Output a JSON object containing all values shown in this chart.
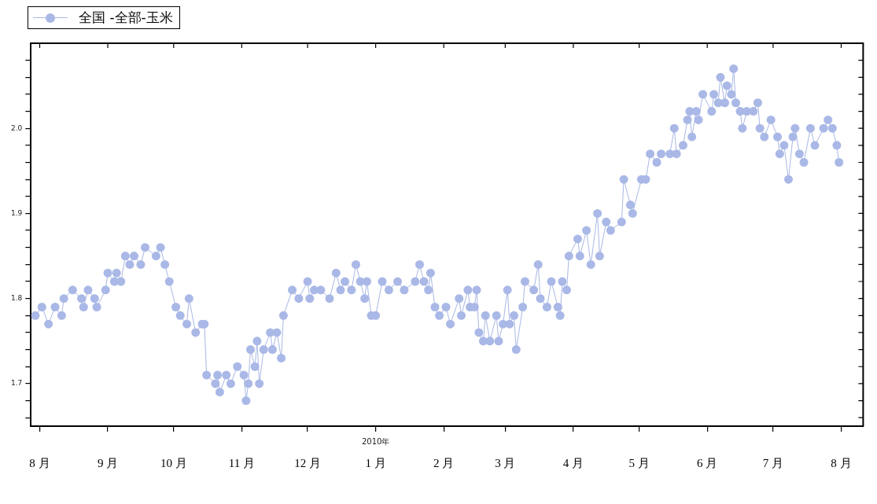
{
  "chart_data": {
    "type": "line",
    "legend": "top left",
    "marker": "circle",
    "xlim": [
      "2009-07-28",
      "2010-08-11"
    ],
    "xticks": [
      {
        "value": "2009-08-01",
        "label": "8 月"
      },
      {
        "value": "2009-09-01",
        "label": "9 月"
      },
      {
        "value": "2009-10-01",
        "label": "10 月"
      },
      {
        "value": "2009-11-01",
        "label": "11 月"
      },
      {
        "value": "2009-12-01",
        "label": "12 月"
      },
      {
        "value": "2010-01-01",
        "label": "1 月"
      },
      {
        "value": "2010-02-01",
        "label": "2 月"
      },
      {
        "value": "2010-03-01",
        "label": "3 月"
      },
      {
        "value": "2010-04-01",
        "label": "4 月"
      },
      {
        "value": "2010-05-01",
        "label": "5 月"
      },
      {
        "value": "2010-06-01",
        "label": "6 月"
      },
      {
        "value": "2010-07-01",
        "label": "7 月"
      },
      {
        "value": "2010-08-01",
        "label": "8 月"
      }
    ],
    "ylim": [
      1.65,
      2.1
    ],
    "yticks": [
      {
        "value": 1.66,
        "label": null
      },
      {
        "value": 1.68,
        "label": null
      },
      {
        "value": 1.7,
        "label": "1.7"
      },
      {
        "value": 1.72,
        "label": null
      },
      {
        "value": 1.74,
        "label": null
      },
      {
        "value": 1.76,
        "label": null
      },
      {
        "value": 1.78,
        "label": null
      },
      {
        "value": 1.8,
        "label": "1.8"
      },
      {
        "value": 1.82,
        "label": null
      },
      {
        "value": 1.84,
        "label": null
      },
      {
        "value": 1.86,
        "label": null
      },
      {
        "value": 1.88,
        "label": null
      },
      {
        "value": 1.9,
        "label": "1.9"
      },
      {
        "value": 1.92,
        "label": null
      },
      {
        "value": 1.94,
        "label": null
      },
      {
        "value": 1.96,
        "label": null
      },
      {
        "value": 1.98,
        "label": null
      },
      {
        "value": 2.0,
        "label": "2.0"
      },
      {
        "value": 2.02,
        "label": null
      },
      {
        "value": 2.04,
        "label": null
      },
      {
        "value": 2.06,
        "label": null
      },
      {
        "value": 2.08,
        "label": null
      }
    ],
    "annotations": [
      "2010年"
    ],
    "series": [
      {
        "name": "全国 -全部-玉米",
        "color": "#a9b8e6",
        "x": [
          "2009-07-30",
          "2009-08-02",
          "2009-08-05",
          "2009-08-08",
          "2009-08-11",
          "2009-08-12",
          "2009-08-16",
          "2009-08-20",
          "2009-08-21",
          "2009-08-23",
          "2009-08-26",
          "2009-08-27",
          "2009-08-31",
          "2009-09-01",
          "2009-09-04",
          "2009-09-05",
          "2009-09-07",
          "2009-09-09",
          "2009-09-11",
          "2009-09-13",
          "2009-09-16",
          "2009-09-18",
          "2009-09-23",
          "2009-09-25",
          "2009-09-27",
          "2009-09-29",
          "2009-10-02",
          "2009-10-04",
          "2009-10-07",
          "2009-10-08",
          "2009-10-11",
          "2009-10-14",
          "2009-10-15",
          "2009-10-16",
          "2009-10-20",
          "2009-10-21",
          "2009-10-22",
          "2009-10-25",
          "2009-10-27",
          "2009-10-30",
          "2009-11-02",
          "2009-11-03",
          "2009-11-04",
          "2009-11-05",
          "2009-11-07",
          "2009-11-08",
          "2009-11-09",
          "2009-11-11",
          "2009-11-14",
          "2009-11-15",
          "2009-11-17",
          "2009-11-19",
          "2009-11-20",
          "2009-11-24",
          "2009-11-27",
          "2009-12-01",
          "2009-12-02",
          "2009-12-04",
          "2009-12-07",
          "2009-12-11",
          "2009-12-14",
          "2009-12-16",
          "2009-12-18",
          "2009-12-21",
          "2009-12-23",
          "2009-12-25",
          "2009-12-27",
          "2009-12-28",
          "2009-12-30",
          "2010-01-01",
          "2010-01-04",
          "2010-01-07",
          "2010-01-11",
          "2010-01-14",
          "2010-01-19",
          "2010-01-21",
          "2010-01-23",
          "2010-01-25",
          "2010-01-26",
          "2010-01-28",
          "2010-01-30",
          "2010-02-02",
          "2010-02-04",
          "2010-02-08",
          "2010-02-09",
          "2010-02-12",
          "2010-02-13",
          "2010-02-15",
          "2010-02-16",
          "2010-02-17",
          "2010-02-19",
          "2010-02-20",
          "2010-02-22",
          "2010-02-25",
          "2010-02-26",
          "2010-02-28",
          "2010-03-02",
          "2010-03-03",
          "2010-03-05",
          "2010-03-06",
          "2010-03-09",
          "2010-03-10",
          "2010-03-14",
          "2010-03-16",
          "2010-03-17",
          "2010-03-20",
          "2010-03-22",
          "2010-03-25",
          "2010-03-26",
          "2010-03-27",
          "2010-03-29",
          "2010-03-30",
          "2010-04-03",
          "2010-04-04",
          "2010-04-07",
          "2010-04-09",
          "2010-04-12",
          "2010-04-13",
          "2010-04-16",
          "2010-04-18",
          "2010-04-23",
          "2010-04-24",
          "2010-04-27",
          "2010-04-28",
          "2010-05-02",
          "2010-05-04",
          "2010-05-06",
          "2010-05-09",
          "2010-05-11",
          "2010-05-15",
          "2010-05-17",
          "2010-05-18",
          "2010-05-21",
          "2010-05-23",
          "2010-05-24",
          "2010-05-25",
          "2010-05-27",
          "2010-05-28",
          "2010-05-30",
          "2010-06-03",
          "2010-06-04",
          "2010-06-06",
          "2010-06-07",
          "2010-06-09",
          "2010-06-10",
          "2010-06-12",
          "2010-06-13",
          "2010-06-14",
          "2010-06-16",
          "2010-06-17",
          "2010-06-19",
          "2010-06-22",
          "2010-06-24",
          "2010-06-25",
          "2010-06-27",
          "2010-06-30",
          "2010-07-03",
          "2010-07-04",
          "2010-07-06",
          "2010-07-08",
          "2010-07-10",
          "2010-07-11",
          "2010-07-13",
          "2010-07-15",
          "2010-07-18",
          "2010-07-20",
          "2010-07-24",
          "2010-07-26",
          "2010-07-28",
          "2010-07-30",
          "2010-07-31"
        ],
        "values": [
          1.78,
          1.79,
          1.77,
          1.79,
          1.78,
          1.8,
          1.81,
          1.8,
          1.79,
          1.81,
          1.8,
          1.79,
          1.81,
          1.83,
          1.82,
          1.83,
          1.82,
          1.85,
          1.84,
          1.85,
          1.84,
          1.86,
          1.85,
          1.86,
          1.84,
          1.82,
          1.79,
          1.78,
          1.77,
          1.8,
          1.76,
          1.77,
          1.77,
          1.71,
          1.7,
          1.71,
          1.69,
          1.71,
          1.7,
          1.72,
          1.71,
          1.68,
          1.7,
          1.74,
          1.72,
          1.75,
          1.7,
          1.74,
          1.76,
          1.74,
          1.76,
          1.73,
          1.78,
          1.81,
          1.8,
          1.82,
          1.8,
          1.81,
          1.81,
          1.8,
          1.83,
          1.81,
          1.82,
          1.81,
          1.84,
          1.82,
          1.8,
          1.82,
          1.78,
          1.78,
          1.82,
          1.81,
          1.82,
          1.81,
          1.82,
          1.84,
          1.82,
          1.81,
          1.83,
          1.79,
          1.78,
          1.79,
          1.77,
          1.8,
          1.78,
          1.81,
          1.79,
          1.79,
          1.81,
          1.76,
          1.75,
          1.78,
          1.75,
          1.78,
          1.75,
          1.77,
          1.81,
          1.77,
          1.78,
          1.74,
          1.79,
          1.82,
          1.81,
          1.84,
          1.8,
          1.79,
          1.82,
          1.79,
          1.78,
          1.82,
          1.81,
          1.85,
          1.87,
          1.85,
          1.88,
          1.84,
          1.9,
          1.85,
          1.89,
          1.88,
          1.89,
          1.94,
          1.91,
          1.9,
          1.94,
          1.94,
          1.97,
          1.96,
          1.97,
          1.97,
          2.0,
          1.97,
          1.98,
          2.01,
          2.02,
          1.99,
          2.02,
          2.01,
          2.04,
          2.02,
          2.04,
          2.03,
          2.06,
          2.03,
          2.05,
          2.04,
          2.07,
          2.03,
          2.02,
          2.0,
          2.02,
          2.02,
          2.03,
          2.0,
          1.99,
          2.01,
          1.99,
          1.97,
          1.98,
          1.94,
          1.99,
          2.0,
          1.97,
          1.96,
          2.0,
          1.98,
          2.0,
          2.01,
          2.0,
          1.98,
          1.96
        ]
      }
    ]
  }
}
